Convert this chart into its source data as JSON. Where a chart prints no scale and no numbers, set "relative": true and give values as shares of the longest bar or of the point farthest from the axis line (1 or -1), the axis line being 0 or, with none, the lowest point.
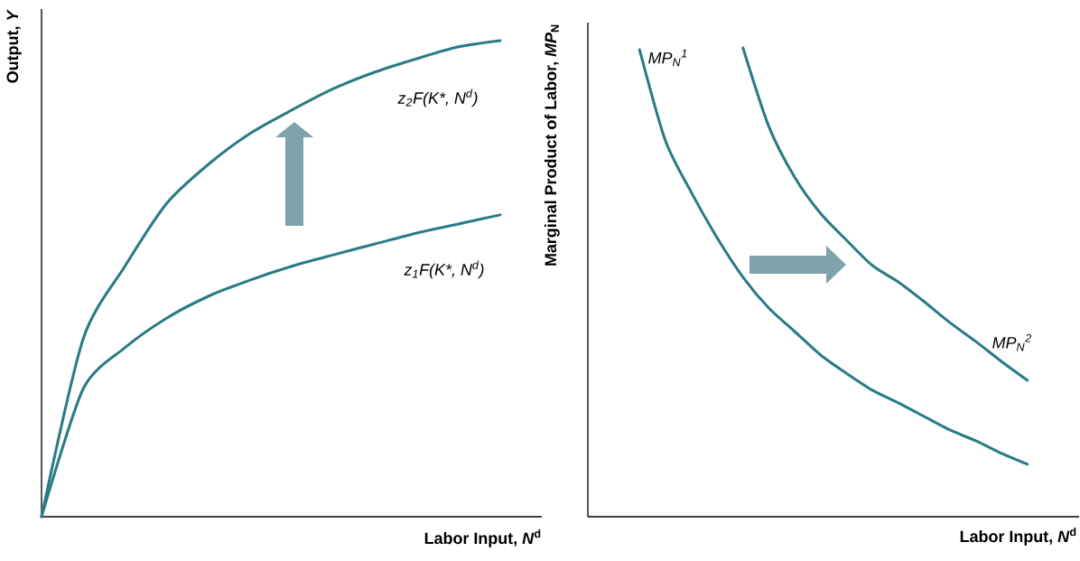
{
  "chart_data": [
    {
      "type": "line",
      "relative": true,
      "ylabel": "Output, *Y*",
      "xlabel": "Labor Input, *N*$^{d}$",
      "categories": [
        null,
        null,
        null,
        null,
        null,
        null,
        null,
        null,
        null,
        null,
        null,
        null,
        null
      ],
      "series": [
        {
          "name": "z$_{2}$F(K*, N$^{d}$)",
          "color": "#2a7b86",
          "values": [
            0,
            0.374,
            0.526,
            0.658,
            0.74,
            0.805,
            0.854,
            0.899,
            0.934,
            0.962,
            0.987,
            1.0,
            null
          ]
        },
        {
          "name": "z$_{1}$F(K*, N$^{d}$)",
          "color": "#2a7b86",
          "values": [
            0,
            0.269,
            0.355,
            0.417,
            0.463,
            0.497,
            0.526,
            0.55,
            0.573,
            0.596,
            0.615,
            0.634,
            null
          ]
        }
      ]
    },
    {
      "type": "line",
      "relative": true,
      "ylabel": "Marginal Product of Labor, *MP*$_{N}$",
      "xlabel": "Labor Input, *N*$^{d}$",
      "categories": [
        null,
        null,
        null,
        null,
        null,
        null,
        null,
        null,
        null,
        null,
        null,
        null,
        null,
        null,
        null,
        null,
        null,
        null,
        null,
        null
      ],
      "series": [
        {
          "name": "*MP*$_{N}$$^{1}$",
          "color": "#2a7b86",
          "values": [
            null,
            null,
            0.996,
            0.802,
            0.692,
            0.595,
            0.511,
            0.445,
            0.395,
            0.345,
            0.306,
            0.27,
            0.243,
            0.214,
            0.185,
            0.162,
            0.135,
            0.112,
            null,
            null
          ]
        },
        {
          "name": "*MP*$_{N}$$^{2}$",
          "color": "#2a7b86",
          "values": [
            null,
            null,
            null,
            null,
            null,
            null,
            1.0,
            0.832,
            0.724,
            0.647,
            0.59,
            0.536,
            0.501,
            0.459,
            0.414,
            0.374,
            0.331,
            0.291,
            null,
            null
          ]
        }
      ]
    }
  ]
}
